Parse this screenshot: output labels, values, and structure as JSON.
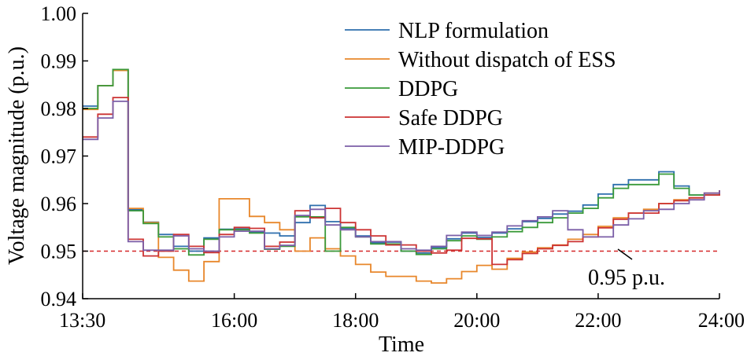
{
  "chart_data": {
    "type": "line",
    "title": "",
    "xlabel": "Time",
    "ylabel": "Voltage magnitude (p.u.)",
    "ylim": [
      0.94,
      1.0
    ],
    "xlim": [
      "13:30",
      "24:00"
    ],
    "x_ticks": [
      "13:30",
      "16:00",
      "18:00",
      "20:00",
      "22:00",
      "24:00"
    ],
    "y_ticks": [
      "0.94",
      "0.95",
      "0.96",
      "0.97",
      "0.98",
      "0.99",
      "1.00"
    ],
    "grid": false,
    "legend_position": "top-right",
    "step": true,
    "x": [
      "13:30",
      "13:45",
      "14:00",
      "14:15",
      "14:30",
      "14:45",
      "15:00",
      "15:15",
      "15:30",
      "15:45",
      "16:00",
      "16:15",
      "16:30",
      "16:45",
      "17:00",
      "17:15",
      "17:30",
      "17:45",
      "18:00",
      "18:15",
      "18:30",
      "18:45",
      "19:00",
      "19:15",
      "19:30",
      "19:45",
      "20:00",
      "20:15",
      "20:30",
      "20:45",
      "21:00",
      "21:15",
      "21:30",
      "21:45",
      "22:00",
      "22:15",
      "22:30",
      "22:45",
      "23:00",
      "23:15",
      "23:30",
      "23:45",
      "24:00"
    ],
    "series": [
      {
        "name": "NLP formulation",
        "color": "#2e6fad",
        "values": [
          0.9805,
          0.9848,
          0.9882,
          0.9587,
          0.9561,
          0.9535,
          0.951,
          0.95,
          0.9528,
          0.9546,
          0.9547,
          0.954,
          0.9538,
          0.9532,
          0.956,
          0.9596,
          0.9562,
          0.9548,
          0.9532,
          0.9518,
          0.9519,
          0.95,
          0.9496,
          0.9508,
          0.9526,
          0.9538,
          0.9529,
          0.9538,
          0.9547,
          0.9562,
          0.9569,
          0.9578,
          0.9584,
          0.9597,
          0.962,
          0.964,
          0.965,
          0.965,
          0.9667,
          0.9637,
          0.9618,
          0.9618,
          0.9628
        ]
      },
      {
        "name": "Without dispatch of ESS",
        "color": "#e8872b",
        "values": [
          0.9798,
          0.9848,
          0.988,
          0.959,
          0.956,
          0.9487,
          0.946,
          0.9437,
          0.9478,
          0.961,
          0.961,
          0.9573,
          0.956,
          0.9545,
          0.95,
          0.9528,
          0.9505,
          0.949,
          0.9472,
          0.9456,
          0.9447,
          0.9447,
          0.9437,
          0.9433,
          0.9442,
          0.9457,
          0.947,
          0.9462,
          0.9485,
          0.9498,
          0.9507,
          0.9513,
          0.9525,
          0.9535,
          0.9552,
          0.957,
          0.958,
          0.9588,
          0.96,
          0.9608,
          0.9612,
          0.9622,
          0.9628
        ]
      },
      {
        "name": "DDPG",
        "color": "#3a9a3a",
        "values": [
          0.98,
          0.9848,
          0.9882,
          0.9585,
          0.9558,
          0.953,
          0.9505,
          0.9492,
          0.9525,
          0.9545,
          0.9545,
          0.9538,
          0.9504,
          0.951,
          0.9572,
          0.9572,
          0.95,
          0.955,
          0.953,
          0.9515,
          0.9515,
          0.95,
          0.9493,
          0.9505,
          0.9522,
          0.9532,
          0.9525,
          0.953,
          0.9541,
          0.955,
          0.956,
          0.957,
          0.958,
          0.959,
          0.9612,
          0.9632,
          0.964,
          0.964,
          0.9662,
          0.9632,
          0.9618,
          0.9618,
          0.9628
        ]
      },
      {
        "name": "Safe DDPG",
        "color": "#cc3333",
        "values": [
          0.974,
          0.9788,
          0.9823,
          0.9525,
          0.949,
          0.95,
          0.9535,
          0.951,
          0.9497,
          0.9535,
          0.955,
          0.9548,
          0.951,
          0.9519,
          0.9585,
          0.957,
          0.959,
          0.956,
          0.9545,
          0.9532,
          0.9513,
          0.9513,
          0.95,
          0.9496,
          0.9502,
          0.9527,
          0.9526,
          0.9472,
          0.9482,
          0.9495,
          0.9505,
          0.9512,
          0.952,
          0.953,
          0.9549,
          0.9567,
          0.958,
          0.958,
          0.96,
          0.9606,
          0.9612,
          0.9618,
          0.9628
        ]
      },
      {
        "name": "MIP-DDPG",
        "color": "#7b5ea7",
        "values": [
          0.9735,
          0.978,
          0.9815,
          0.952,
          0.9502,
          0.9502,
          0.9532,
          0.9505,
          0.95,
          0.953,
          0.9542,
          0.9542,
          0.9505,
          0.9512,
          0.9575,
          0.9588,
          0.9555,
          0.9545,
          0.953,
          0.952,
          0.952,
          0.9505,
          0.9502,
          0.951,
          0.9533,
          0.954,
          0.9533,
          0.954,
          0.9553,
          0.9564,
          0.9572,
          0.9585,
          0.9545,
          0.953,
          0.953,
          0.9555,
          0.9568,
          0.9585,
          0.9588,
          0.96,
          0.9608,
          0.9622,
          0.9628
        ]
      }
    ],
    "reference_line": {
      "y": 0.95,
      "color": "#d62728",
      "style": "dashed",
      "label": "0.95 p.u."
    }
  }
}
